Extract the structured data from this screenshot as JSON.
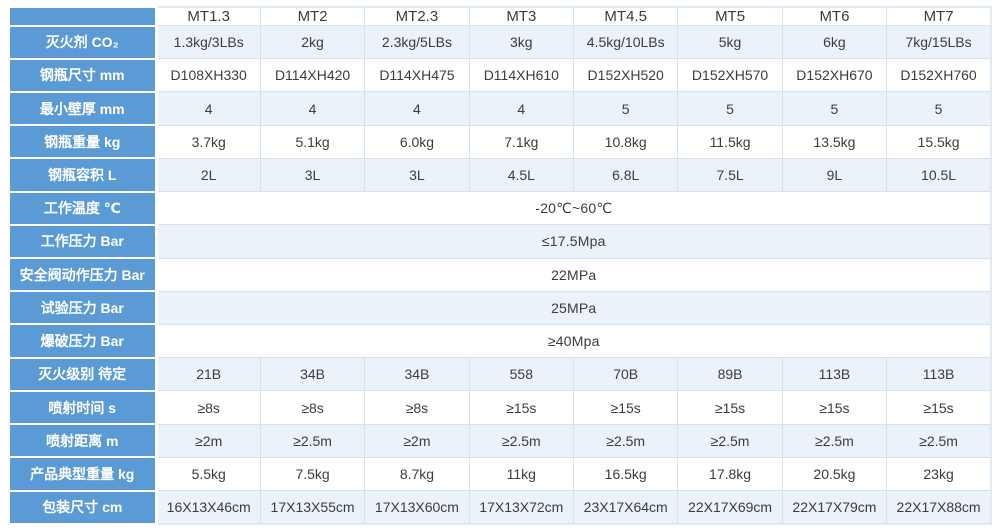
{
  "table": {
    "corner_label": "",
    "columns": [
      "MT1.3",
      "MT2",
      "MT2.3",
      "MT3",
      "MT4.5",
      "MT5",
      "MT6",
      "MT7"
    ],
    "rows": [
      {
        "label": "灭火剂 CO₂",
        "values": [
          "1.3kg/3LBs",
          "2kg",
          "2.3kg/5LBs",
          "3kg",
          "4.5kg/10LBs",
          "5kg",
          "6kg",
          "7kg/15LBs"
        ]
      },
      {
        "label": "钢瓶尺寸 mm",
        "values": [
          "D108XH330",
          "D114XH420",
          "D114XH475",
          "D114XH610",
          "D152XH520",
          "D152XH570",
          "D152XH670",
          "D152XH760"
        ]
      },
      {
        "label": "最小壁厚 mm",
        "values": [
          "4",
          "4",
          "4",
          "4",
          "5",
          "5",
          "5",
          "5"
        ]
      },
      {
        "label": "钢瓶重量 kg",
        "values": [
          "3.7kg",
          "5.1kg",
          "6.0kg",
          "7.1kg",
          "10.8kg",
          "11.5kg",
          "13.5kg",
          "15.5kg"
        ]
      },
      {
        "label": "钢瓶容积 L",
        "values": [
          "2L",
          "3L",
          "3L",
          "4.5L",
          "6.8L",
          "7.5L",
          "9L",
          "10.5L"
        ]
      },
      {
        "label": "工作温度 ℃",
        "merged": "-20℃~60℃"
      },
      {
        "label": "工作压力 Bar",
        "merged": "≤17.5Mpa"
      },
      {
        "label": "安全阀动作压力 Bar",
        "merged": "22MPa"
      },
      {
        "label": "试验压力 Bar",
        "merged": "25MPa"
      },
      {
        "label": "爆破压力 Bar",
        "merged": "≥40Mpa"
      },
      {
        "label": "灭火级别 待定",
        "values": [
          "21B",
          "34B",
          "34B",
          "558",
          "70B",
          "89B",
          "113B",
          "113B"
        ]
      },
      {
        "label": "喷射时间 s",
        "values": [
          "≥8s",
          "≥8s",
          "≥8s",
          "≥15s",
          "≥15s",
          "≥15s",
          "≥15s",
          "≥15s"
        ]
      },
      {
        "label": "喷射距离 m",
        "values": [
          "≥2m",
          "≥2.5m",
          "≥2m",
          "≥2.5m",
          "≥2.5m",
          "≥2.5m",
          "≥2.5m",
          "≥2.5m"
        ]
      },
      {
        "label": "产品典型重量 kg",
        "values": [
          "5.5kg",
          "7.5kg",
          "8.7kg",
          "11kg",
          "16.5kg",
          "17.8kg",
          "20.5kg",
          "23kg"
        ]
      },
      {
        "label": "包装尺寸 cm",
        "values": [
          "16X13X46cm",
          "17X13X55cm",
          "17X13X60cm",
          "17X13X72cm",
          "23X17X64cm",
          "22X17X69cm",
          "22X17X79cm",
          "22X17X88cm"
        ]
      }
    ],
    "colors": {
      "label_bg": "#5b9bd5",
      "label_text": "#ffffff",
      "row_alt_bg": "#ebf2fa",
      "row_bg": "#ffffff",
      "border": "#d5e1ef",
      "data_text": "#3c3c3c"
    }
  }
}
